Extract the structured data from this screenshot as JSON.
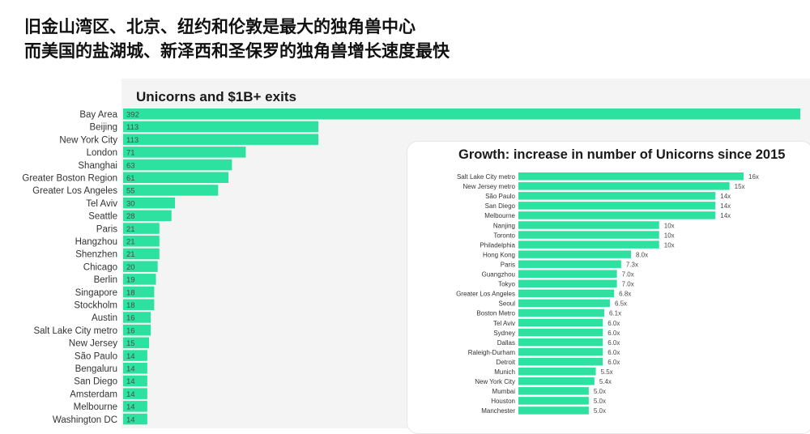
{
  "headline": {
    "line1": "旧金山湾区、北京、纽约和伦敦是最大的独角兽中心",
    "line2": "而美国的盐湖城、新泽西和圣保罗的独角兽增长速度最快"
  },
  "colors": {
    "bar": "#2de2a0",
    "label": "#333333",
    "value": "#4a4a4a"
  },
  "chart_data": [
    {
      "type": "bar",
      "orientation": "horizontal",
      "title": "Unicorns and $1B+ exits",
      "categories": [
        "Bay Area",
        "Beijing",
        "New York City",
        "London",
        "Shanghai",
        "Greater Boston Region",
        "Greater Los Angeles",
        "Tel Aviv",
        "Seattle",
        "Paris",
        "Hangzhou",
        "Shenzhen",
        "Chicago",
        "Berlin",
        "Singapore",
        "Stockholm",
        "Austin",
        "Salt Lake City metro",
        "New Jersey",
        "São Paulo",
        "Bengaluru",
        "San Diego",
        "Amsterdam",
        "Melbourne",
        "Washington DC"
      ],
      "values": [
        392,
        113,
        113,
        71,
        63,
        61,
        55,
        30,
        28,
        21,
        21,
        21,
        20,
        19,
        18,
        18,
        16,
        16,
        15,
        14,
        14,
        14,
        14,
        14,
        14
      ],
      "value_labels": [
        "392",
        "113",
        "113",
        "71",
        "63",
        "61",
        "55",
        "30",
        "28",
        "21",
        "21",
        "21",
        "20",
        "19",
        "18",
        "18",
        "16",
        "16",
        "15",
        "14",
        "14",
        "14",
        "14",
        "14",
        "14"
      ]
    },
    {
      "type": "bar",
      "orientation": "horizontal",
      "title": "Growth: increase in number of Unicorns since 2015",
      "categories": [
        "Salt Lake City metro",
        "New Jersey metro",
        "São Paulo",
        "San Diego",
        "Melbourne",
        "Nanjing",
        "Toronto",
        "Philadelphia",
        "Hong Kong",
        "Paris",
        "Guangzhou",
        "Tokyo",
        "Greater Los Angeles",
        "Seoul",
        "Boston Metro",
        "Tel Aviv",
        "Sydney",
        "Dallas",
        "Raleigh-Durham",
        "Detroit",
        "Munich",
        "New York City",
        "Mumbai",
        "Houston",
        "Manchester"
      ],
      "values": [
        16,
        15,
        14,
        14,
        14,
        10,
        10,
        10,
        8.0,
        7.3,
        7.0,
        7.0,
        6.8,
        6.5,
        6.1,
        6.0,
        6.0,
        6.0,
        6.0,
        6.0,
        5.5,
        5.4,
        5.0,
        5.0,
        5.0
      ],
      "value_labels": [
        "16x",
        "15x",
        "14x",
        "14x",
        "14x",
        "10x",
        "10x",
        "10x",
        "8.0x",
        "7.3x",
        "7.0x",
        "7.0x",
        "6.8x",
        "6.5x",
        "6.1x",
        "6.0x",
        "6.0x",
        "6.0x",
        "6.0x",
        "6.0x",
        "5.5x",
        "5.4x",
        "5.0x",
        "5.0x",
        "5.0x"
      ]
    }
  ]
}
